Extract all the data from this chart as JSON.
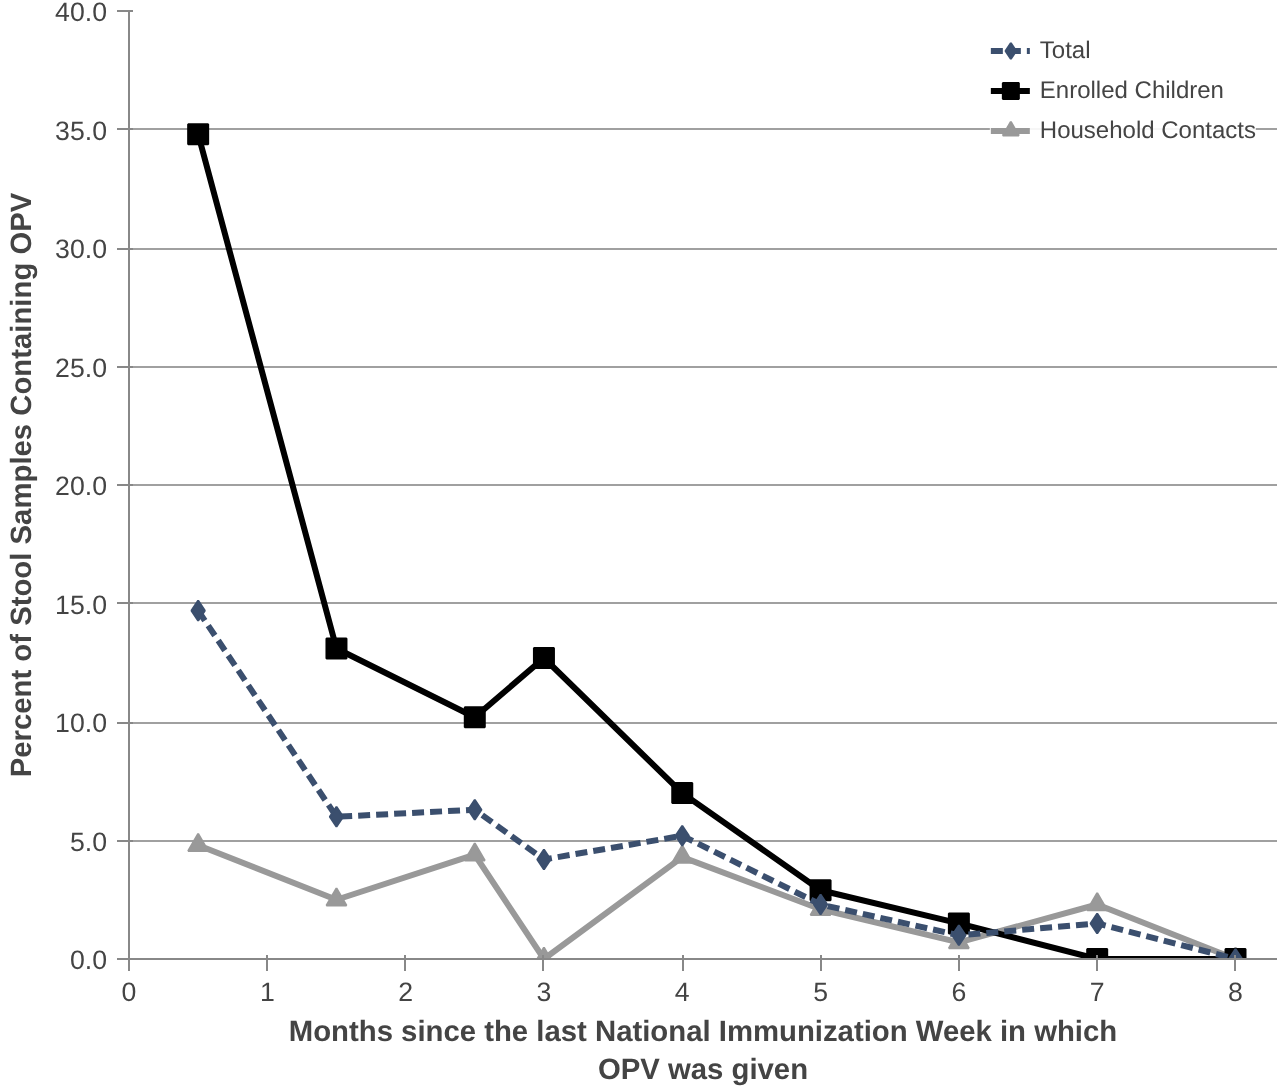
{
  "chart_data": {
    "type": "line",
    "xlabel": "Months since the last National Immunization Week in which\nOPV was given",
    "ylabel": "Percent of Stool Samples Containing OPV",
    "x": [
      0.5,
      1.5,
      2.5,
      3,
      4,
      5,
      6,
      7,
      8
    ],
    "series": [
      {
        "name": "Total",
        "color": "#3b4f6e",
        "marker": "diamond",
        "line_style": "dashed",
        "values": [
          14.7,
          6.0,
          6.3,
          4.2,
          5.2,
          2.3,
          1.0,
          1.5,
          0.0
        ]
      },
      {
        "name": "Enrolled Children",
        "color": "#000000",
        "marker": "square",
        "line_style": "solid",
        "values": [
          34.8,
          13.1,
          10.2,
          12.7,
          7.0,
          2.9,
          1.5,
          0.0,
          0.0
        ]
      },
      {
        "name": "Household Contacts",
        "color": "#999999",
        "marker": "triangle",
        "line_style": "solid",
        "values": [
          4.8,
          2.5,
          4.4,
          0.0,
          4.3,
          2.1,
          0.7,
          2.3,
          0.0
        ]
      }
    ],
    "xlim": [
      0,
      8.3
    ],
    "xticks": [
      0,
      1,
      2,
      3,
      4,
      5,
      6,
      7,
      8
    ],
    "ylim": [
      0,
      40
    ],
    "yticks": [
      {
        "value": 0,
        "label": "0.0"
      },
      {
        "value": 5,
        "label": "5.0"
      },
      {
        "value": 10,
        "label": "10.0"
      },
      {
        "value": 15,
        "label": "15.0"
      },
      {
        "value": 20,
        "label": "20.0"
      },
      {
        "value": 25,
        "label": "25.0"
      },
      {
        "value": 30,
        "label": "30.0"
      },
      {
        "value": 35,
        "label": "35.0"
      },
      {
        "value": 40,
        "label": "40.0"
      }
    ],
    "grid": "y",
    "legend": "top right"
  }
}
